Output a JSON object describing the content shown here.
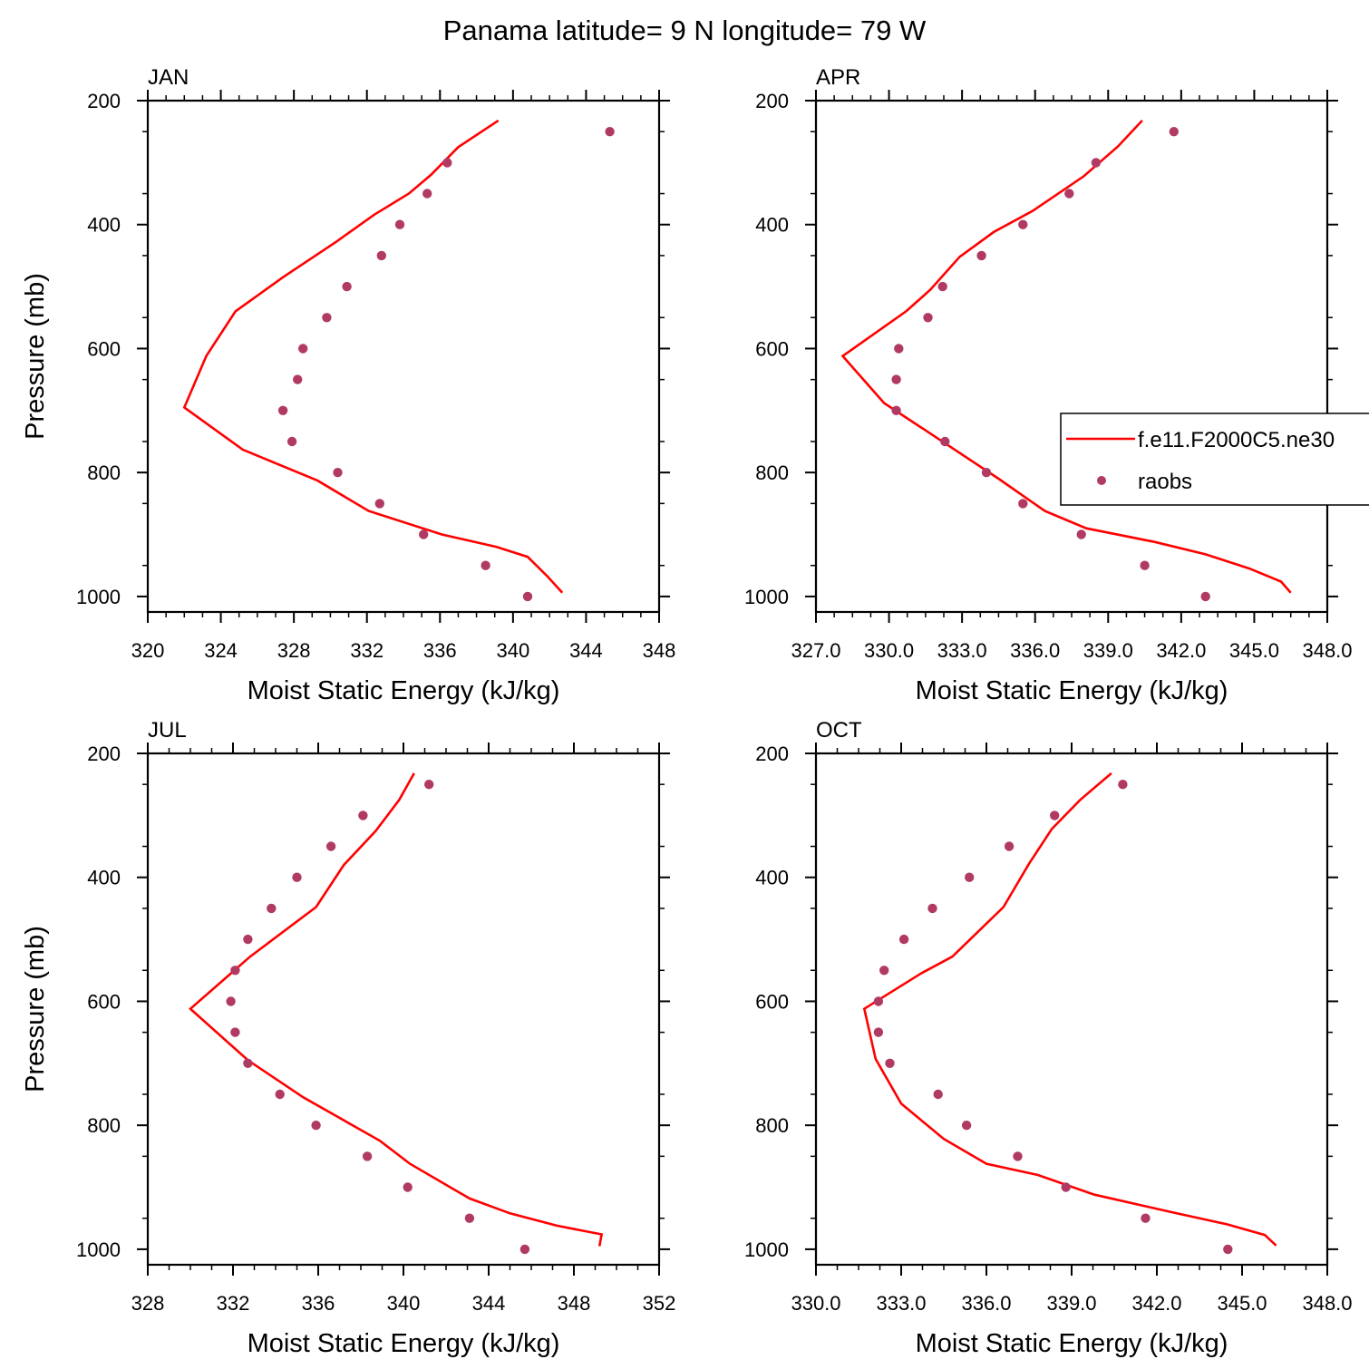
{
  "title": "Panama  latitude= 9 N longitude= 79 W",
  "colors": {
    "model": "#ff0000",
    "obs": "#b03a64",
    "axis": "#000000"
  },
  "legend": {
    "placement": "right-center of APR panel (clipped at figure edge)",
    "model_label": "f.e11.F2000C5.ne30",
    "obs_label": "raobs"
  },
  "chart_data": [
    {
      "type": "line",
      "panel": "JAN",
      "xlabel": "Moist Static Energy (kJ/kg)",
      "ylabel": "Pressure (mb)",
      "xlim": [
        320,
        348
      ],
      "ylim": [
        200,
        1025
      ],
      "y_inverted": true,
      "xticks": [
        "320",
        "324",
        "328",
        "332",
        "336",
        "340",
        "344",
        "348"
      ],
      "yticks": [
        "200",
        "400",
        "600",
        "800",
        "1000"
      ],
      "series": [
        {
          "name": "f.e11.F2000C5.ne30",
          "kind": "line",
          "points": [
            [
              339.2,
              232
            ],
            [
              337.0,
              275
            ],
            [
              335.5,
              320
            ],
            [
              334.3,
              350
            ],
            [
              332.4,
              384
            ],
            [
              330.3,
              428
            ],
            [
              327.4,
              485
            ],
            [
              324.8,
              540
            ],
            [
              323.2,
              612
            ],
            [
              322.0,
              695
            ],
            [
              325.2,
              763
            ],
            [
              329.3,
              813
            ],
            [
              332.1,
              862
            ],
            [
              336.1,
              900
            ],
            [
              339.1,
              920
            ],
            [
              340.8,
              936
            ],
            [
              341.9,
              968
            ],
            [
              342.7,
              994
            ]
          ]
        },
        {
          "name": "raobs",
          "kind": "scatter",
          "points": [
            [
              345.3,
              250
            ],
            [
              336.4,
              300
            ],
            [
              335.3,
              350
            ],
            [
              333.8,
              400
            ],
            [
              332.8,
              450
            ],
            [
              330.9,
              500
            ],
            [
              329.8,
              550
            ],
            [
              328.5,
              600
            ],
            [
              328.2,
              650
            ],
            [
              327.4,
              700
            ],
            [
              327.9,
              750
            ],
            [
              330.4,
              800
            ],
            [
              332.7,
              850
            ],
            [
              335.1,
              900
            ],
            [
              338.5,
              950
            ],
            [
              340.8,
              1000
            ]
          ]
        }
      ]
    },
    {
      "type": "line",
      "panel": "APR",
      "xlabel": "Moist Static Energy (kJ/kg)",
      "ylabel": "",
      "xlim": [
        327,
        348
      ],
      "ylim": [
        200,
        1025
      ],
      "y_inverted": true,
      "xticks": [
        "327.0",
        "330.0",
        "333.0",
        "336.0",
        "339.0",
        "342.0",
        "345.0",
        "348.0"
      ],
      "yticks": [
        "200",
        "400",
        "600",
        "800",
        "1000"
      ],
      "series": [
        {
          "name": "f.e11.F2000C5.ne30",
          "kind": "line",
          "points": [
            [
              340.4,
              232
            ],
            [
              339.4,
              274
            ],
            [
              338.0,
              322
            ],
            [
              335.9,
              378
            ],
            [
              334.3,
              412
            ],
            [
              332.9,
              452
            ],
            [
              331.7,
              505
            ],
            [
              330.7,
              540
            ],
            [
              328.1,
              612
            ],
            [
              329.8,
              688
            ],
            [
              331.5,
              732
            ],
            [
              334.5,
              810
            ],
            [
              336.4,
              862
            ],
            [
              338.1,
              890
            ],
            [
              340.9,
              912
            ],
            [
              343.0,
              932
            ],
            [
              344.8,
              955
            ],
            [
              346.1,
              976
            ],
            [
              346.5,
              994
            ]
          ]
        },
        {
          "name": "raobs",
          "kind": "scatter",
          "points": [
            [
              341.7,
              250
            ],
            [
              338.5,
              300
            ],
            [
              337.4,
              350
            ],
            [
              335.5,
              400
            ],
            [
              333.8,
              450
            ],
            [
              332.2,
              500
            ],
            [
              331.6,
              550
            ],
            [
              330.4,
              600
            ],
            [
              330.3,
              650
            ],
            [
              330.3,
              700
            ],
            [
              332.3,
              750
            ],
            [
              334.0,
              800
            ],
            [
              335.5,
              850
            ],
            [
              337.9,
              900
            ],
            [
              340.5,
              950
            ],
            [
              343.0,
              1000
            ]
          ]
        }
      ]
    },
    {
      "type": "line",
      "panel": "JUL",
      "xlabel": "Moist Static Energy (kJ/kg)",
      "ylabel": "Pressure (mb)",
      "xlim": [
        328,
        352
      ],
      "ylim": [
        200,
        1025
      ],
      "y_inverted": true,
      "xticks": [
        "328",
        "332",
        "336",
        "340",
        "344",
        "348",
        "352"
      ],
      "yticks": [
        "200",
        "400",
        "600",
        "800",
        "1000"
      ],
      "series": [
        {
          "name": "f.e11.F2000C5.ne30",
          "kind": "line",
          "points": [
            [
              340.5,
              232
            ],
            [
              339.8,
              275
            ],
            [
              338.7,
              325
            ],
            [
              337.2,
              380
            ],
            [
              335.9,
              448
            ],
            [
              332.8,
              528
            ],
            [
              330.0,
              612
            ],
            [
              332.7,
              695
            ],
            [
              335.3,
              755
            ],
            [
              338.9,
              825
            ],
            [
              340.3,
              862
            ],
            [
              343.1,
              918
            ],
            [
              345.0,
              942
            ],
            [
              347.2,
              962
            ],
            [
              349.3,
              976
            ],
            [
              349.2,
              995
            ]
          ]
        },
        {
          "name": "raobs",
          "kind": "scatter",
          "points": [
            [
              341.2,
              250
            ],
            [
              338.1,
              300
            ],
            [
              336.6,
              350
            ],
            [
              335.0,
              400
            ],
            [
              333.8,
              450
            ],
            [
              332.7,
              500
            ],
            [
              332.1,
              550
            ],
            [
              331.9,
              600
            ],
            [
              332.1,
              650
            ],
            [
              332.7,
              700
            ],
            [
              334.2,
              750
            ],
            [
              335.9,
              800
            ],
            [
              338.3,
              850
            ],
            [
              340.2,
              900
            ],
            [
              343.1,
              950
            ],
            [
              345.7,
              1000
            ]
          ]
        }
      ]
    },
    {
      "type": "line",
      "panel": "OCT",
      "xlabel": "Moist Static Energy (kJ/kg)",
      "ylabel": "",
      "xlim": [
        330,
        348
      ],
      "ylim": [
        200,
        1025
      ],
      "y_inverted": true,
      "xticks": [
        "330.0",
        "333.0",
        "336.0",
        "339.0",
        "342.0",
        "345.0",
        "348.0"
      ],
      "yticks": [
        "200",
        "400",
        "600",
        "800",
        "1000"
      ],
      "series": [
        {
          "name": "f.e11.F2000C5.ne30",
          "kind": "line",
          "points": [
            [
              340.4,
              232
            ],
            [
              339.3,
              275
            ],
            [
              338.3,
              322
            ],
            [
              337.5,
              378
            ],
            [
              336.6,
              448
            ],
            [
              334.8,
              528
            ],
            [
              333.7,
              555
            ],
            [
              331.7,
              612
            ],
            [
              332.1,
              693
            ],
            [
              333.0,
              765
            ],
            [
              334.5,
              822
            ],
            [
              336.0,
              862
            ],
            [
              337.8,
              880
            ],
            [
              339.8,
              912
            ],
            [
              342.5,
              940
            ],
            [
              344.5,
              960
            ],
            [
              345.8,
              977
            ],
            [
              346.2,
              994
            ]
          ]
        },
        {
          "name": "raobs",
          "kind": "scatter",
          "points": [
            [
              340.8,
              250
            ],
            [
              338.4,
              300
            ],
            [
              336.8,
              350
            ],
            [
              335.4,
              400
            ],
            [
              334.1,
              450
            ],
            [
              333.1,
              500
            ],
            [
              332.4,
              550
            ],
            [
              332.2,
              600
            ],
            [
              332.2,
              650
            ],
            [
              332.6,
              700
            ],
            [
              334.3,
              750
            ],
            [
              335.3,
              800
            ],
            [
              337.1,
              850
            ],
            [
              338.8,
              900
            ],
            [
              341.6,
              950
            ],
            [
              344.5,
              1000
            ]
          ]
        }
      ]
    }
  ]
}
